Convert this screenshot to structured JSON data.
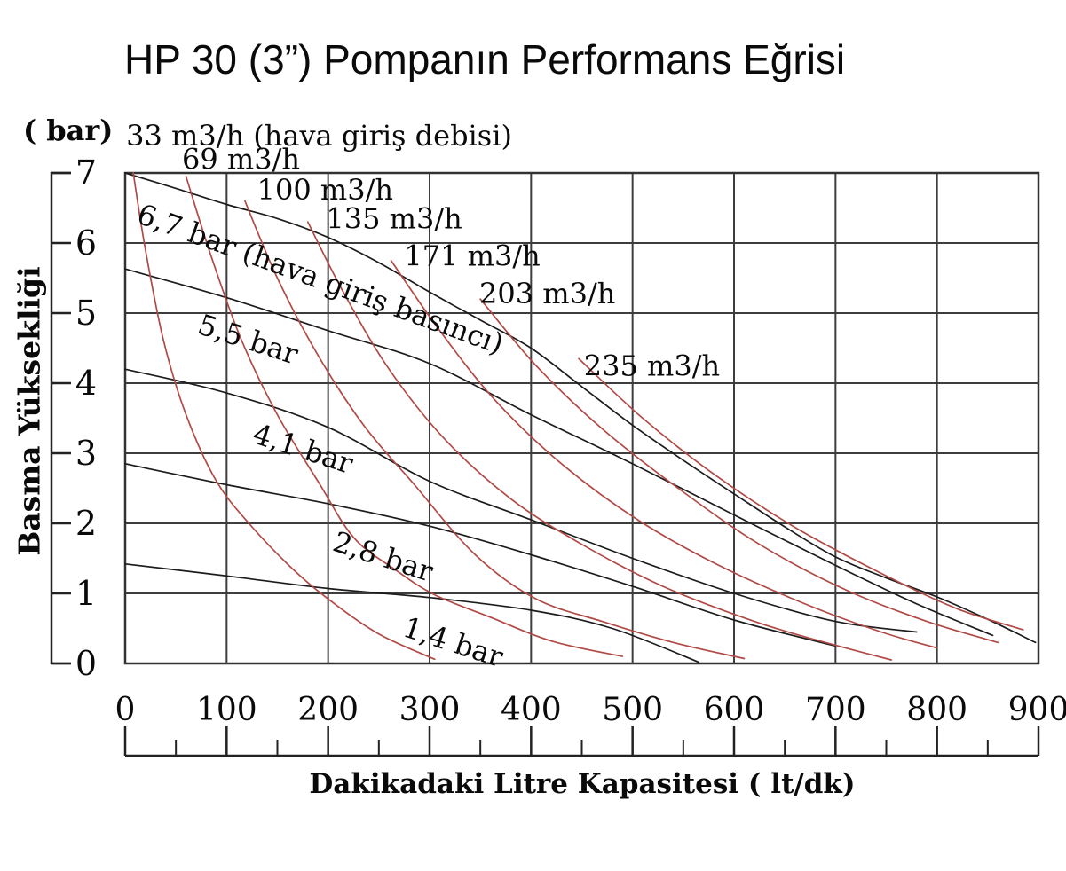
{
  "chart_data": {
    "type": "line",
    "title": "HP 30 (3”) Pompanın Performans Eğrisi",
    "xlabel": "Dakikadaki Litre Kapasitesi ( lt/dk)",
    "ylabel": "Basma Yüksekliği",
    "ylabel_unit": "( bar)",
    "xlim": [
      0,
      900
    ],
    "ylim": [
      0,
      7
    ],
    "grid": true,
    "x_ticks": [
      0,
      100,
      200,
      300,
      400,
      500,
      600,
      700,
      800,
      900
    ],
    "x_minor_ticks": [
      50,
      150,
      250,
      350,
      450,
      550,
      650,
      750,
      850
    ],
    "y_ticks": [
      7,
      6,
      5,
      4,
      3,
      2,
      1,
      0
    ],
    "colors": {
      "air_pressure_curves": "#1c1c1c",
      "air_flow_curves": "#b04a46",
      "grid": "#3d3d3d",
      "text": "#0a0a0a"
    },
    "series": [
      {
        "name": "6,7 bar (hava giriş basıncı)",
        "group": "hava giriş basıncı",
        "color": "#1c1c1c",
        "label": {
          "text": "6,7 bar (hava giriş basıncı)",
          "x": 10,
          "y": 6.3,
          "rotation": 20
        },
        "points": [
          [
            0,
            7.0
          ],
          [
            50,
            6.78
          ],
          [
            100,
            6.55
          ],
          [
            150,
            6.35
          ],
          [
            200,
            6.08
          ],
          [
            250,
            5.72
          ],
          [
            300,
            5.3
          ],
          [
            350,
            4.9
          ],
          [
            400,
            4.5
          ],
          [
            450,
            3.95
          ],
          [
            500,
            3.4
          ],
          [
            550,
            2.9
          ],
          [
            600,
            2.42
          ],
          [
            650,
            1.95
          ],
          [
            700,
            1.52
          ],
          [
            750,
            1.22
          ],
          [
            800,
            0.95
          ],
          [
            850,
            0.63
          ],
          [
            897,
            0.3
          ]
        ]
      },
      {
        "name": "5,5 bar",
        "group": "hava giriş basıncı",
        "color": "#1c1c1c",
        "label": {
          "text": "5,5 bar",
          "x": 70,
          "y": 4.72,
          "rotation": 18
        },
        "points": [
          [
            0,
            5.63
          ],
          [
            100,
            5.22
          ],
          [
            200,
            4.75
          ],
          [
            300,
            4.28
          ],
          [
            400,
            3.55
          ],
          [
            500,
            2.85
          ],
          [
            600,
            2.12
          ],
          [
            700,
            1.4
          ],
          [
            780,
            0.85
          ],
          [
            855,
            0.4
          ]
        ]
      },
      {
        "name": "4,1 bar",
        "group": "hava giriş basıncı",
        "color": "#1c1c1c",
        "label": {
          "text": "4,1 bar",
          "x": 124,
          "y": 3.16,
          "rotation": 18
        },
        "points": [
          [
            0,
            4.2
          ],
          [
            100,
            3.86
          ],
          [
            200,
            3.37
          ],
          [
            300,
            2.6
          ],
          [
            400,
            2.05
          ],
          [
            500,
            1.5
          ],
          [
            600,
            1.0
          ],
          [
            700,
            0.6
          ],
          [
            780,
            0.45
          ]
        ]
      },
      {
        "name": "2,8 bar",
        "group": "hava giriş basıncı",
        "color": "#1c1c1c",
        "label": {
          "text": "2,8 bar",
          "x": 203,
          "y": 1.62,
          "rotation": 18
        },
        "points": [
          [
            0,
            2.85
          ],
          [
            100,
            2.55
          ],
          [
            200,
            2.28
          ],
          [
            300,
            1.96
          ],
          [
            400,
            1.55
          ],
          [
            500,
            1.1
          ],
          [
            600,
            0.62
          ],
          [
            700,
            0.25
          ]
        ]
      },
      {
        "name": "1,4 bar",
        "group": "hava giriş basıncı",
        "color": "#1c1c1c",
        "label": {
          "text": "1,4 bar",
          "x": 272,
          "y": 0.4,
          "rotation": 18
        },
        "points": [
          [
            0,
            1.42
          ],
          [
            100,
            1.25
          ],
          [
            200,
            1.07
          ],
          [
            300,
            0.94
          ],
          [
            400,
            0.76
          ],
          [
            480,
            0.5
          ],
          [
            565,
            0.02
          ]
        ]
      },
      {
        "name": "33 m3/h (hava giriş debisi)",
        "group": "hava giriş debisi",
        "color": "#b04a46",
        "label": {
          "text": "33 m3/h (hava giriş debisi)",
          "x": 1,
          "y": 7.39,
          "rotation": 0
        },
        "points": [
          [
            8,
            7.0
          ],
          [
            20,
            5.9
          ],
          [
            38,
            4.6
          ],
          [
            60,
            3.55
          ],
          [
            90,
            2.6
          ],
          [
            125,
            1.95
          ],
          [
            165,
            1.35
          ],
          [
            200,
            0.92
          ],
          [
            250,
            0.42
          ],
          [
            305,
            0.06
          ]
        ]
      },
      {
        "name": "69 m3/h",
        "group": "hava giriş debisi",
        "color": "#b04a46",
        "label": {
          "text": "69 m3/h",
          "x": 56,
          "y": 7.06,
          "rotation": 0
        },
        "points": [
          [
            60,
            6.95
          ],
          [
            85,
            5.8
          ],
          [
            115,
            4.6
          ],
          [
            150,
            3.55
          ],
          [
            190,
            2.6
          ],
          [
            225,
            1.8
          ],
          [
            265,
            1.35
          ],
          [
            305,
            0.98
          ],
          [
            360,
            0.66
          ],
          [
            420,
            0.32
          ],
          [
            490,
            0.1
          ]
        ]
      },
      {
        "name": "100 m3/h",
        "group": "hava giriş debisi",
        "color": "#b04a46",
        "label": {
          "text": "100 m3/h",
          "x": 130,
          "y": 6.62,
          "rotation": 0
        },
        "points": [
          [
            118,
            6.6
          ],
          [
            150,
            5.5
          ],
          [
            190,
            4.4
          ],
          [
            235,
            3.4
          ],
          [
            285,
            2.55
          ],
          [
            345,
            1.55
          ],
          [
            405,
            0.92
          ],
          [
            470,
            0.6
          ],
          [
            540,
            0.3
          ],
          [
            610,
            0.07
          ]
        ]
      },
      {
        "name": "135 m3/h",
        "group": "hava giriş debisi",
        "color": "#b04a46",
        "label": {
          "text": "135 m3/h",
          "x": 198,
          "y": 6.21,
          "rotation": 0
        },
        "points": [
          [
            180,
            6.3
          ],
          [
            215,
            5.3
          ],
          [
            260,
            4.2
          ],
          [
            315,
            3.2
          ],
          [
            380,
            2.35
          ],
          [
            450,
            1.7
          ],
          [
            530,
            1.1
          ],
          [
            620,
            0.6
          ],
          [
            690,
            0.3
          ],
          [
            755,
            0.05
          ]
        ]
      },
      {
        "name": "171 m3/h",
        "group": "hava giriş debisi",
        "color": "#b04a46",
        "label": {
          "text": "171 m3/h",
          "x": 275,
          "y": 5.68,
          "rotation": 0
        },
        "points": [
          [
            262,
            5.75
          ],
          [
            310,
            4.75
          ],
          [
            365,
            3.75
          ],
          [
            430,
            2.85
          ],
          [
            505,
            2.05
          ],
          [
            585,
            1.4
          ],
          [
            670,
            0.85
          ],
          [
            745,
            0.45
          ],
          [
            800,
            0.22
          ]
        ]
      },
      {
        "name": "203 m3/h",
        "group": "hava giriş debisi",
        "color": "#b04a46",
        "label": {
          "text": "203 m3/h",
          "x": 349,
          "y": 5.14,
          "rotation": 0
        },
        "points": [
          [
            350,
            5.2
          ],
          [
            405,
            4.25
          ],
          [
            470,
            3.35
          ],
          [
            545,
            2.5
          ],
          [
            625,
            1.7
          ],
          [
            710,
            1.05
          ],
          [
            790,
            0.6
          ],
          [
            860,
            0.3
          ]
        ]
      },
      {
        "name": "235 m3/h",
        "group": "hava giriş debisi",
        "color": "#b04a46",
        "label": {
          "text": "235 m3/h",
          "x": 452,
          "y": 4.11,
          "rotation": 0
        },
        "points": [
          [
            447,
            4.35
          ],
          [
            510,
            3.5
          ],
          [
            585,
            2.65
          ],
          [
            665,
            1.9
          ],
          [
            750,
            1.25
          ],
          [
            820,
            0.78
          ],
          [
            885,
            0.48
          ]
        ]
      }
    ]
  }
}
